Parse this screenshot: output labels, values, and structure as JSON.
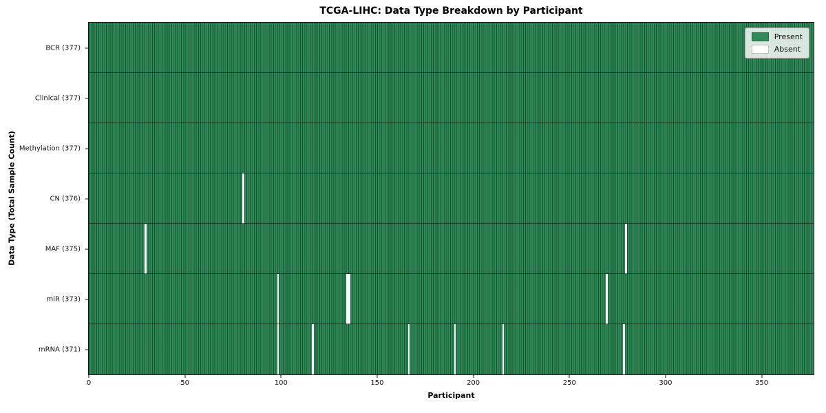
{
  "chart_data": {
    "type": "heatmap",
    "title": "TCGA-LIHC: Data Type Breakdown by Participant",
    "xlabel": "Participant",
    "ylabel": "Data Type (Total Sample Count)",
    "x_ticks": [
      0,
      50,
      100,
      150,
      200,
      250,
      300,
      350
    ],
    "x_range": [
      0,
      377
    ],
    "n_participants": 377,
    "grid": "cell-edges-only",
    "colors": {
      "present": "#2e8b57",
      "absent": "#ffffff",
      "cell_edge": "rgba(4,28,16,0.55)",
      "row_border": "rgba(4,28,16,0.65)"
    },
    "legend": {
      "position": "upper-right",
      "items": [
        {
          "label": "Present",
          "color": "#2e8b57"
        },
        {
          "label": "Absent",
          "color": "#ffffff"
        }
      ]
    },
    "rows": [
      {
        "data_type": "BCR",
        "label": "BCR (377)",
        "total_samples": 377,
        "absent_participants": []
      },
      {
        "data_type": "Clinical",
        "label": "Clinical (377)",
        "total_samples": 377,
        "absent_participants": []
      },
      {
        "data_type": "Methylation",
        "label": "Methylation (377)",
        "total_samples": 377,
        "absent_participants": []
      },
      {
        "data_type": "CN",
        "label": "CN (376)",
        "total_samples": 376,
        "absent_participants": [
          80
        ]
      },
      {
        "data_type": "MAF",
        "label": "MAF (375)",
        "total_samples": 375,
        "absent_participants": [
          29,
          279
        ]
      },
      {
        "data_type": "miR",
        "label": "miR (373)",
        "total_samples": 373,
        "absent_participants": [
          98,
          134,
          135,
          269
        ]
      },
      {
        "data_type": "mRNA",
        "label": "mRNA (371)",
        "total_samples": 371,
        "absent_participants": [
          98,
          116,
          166,
          190,
          215,
          278
        ]
      }
    ]
  }
}
